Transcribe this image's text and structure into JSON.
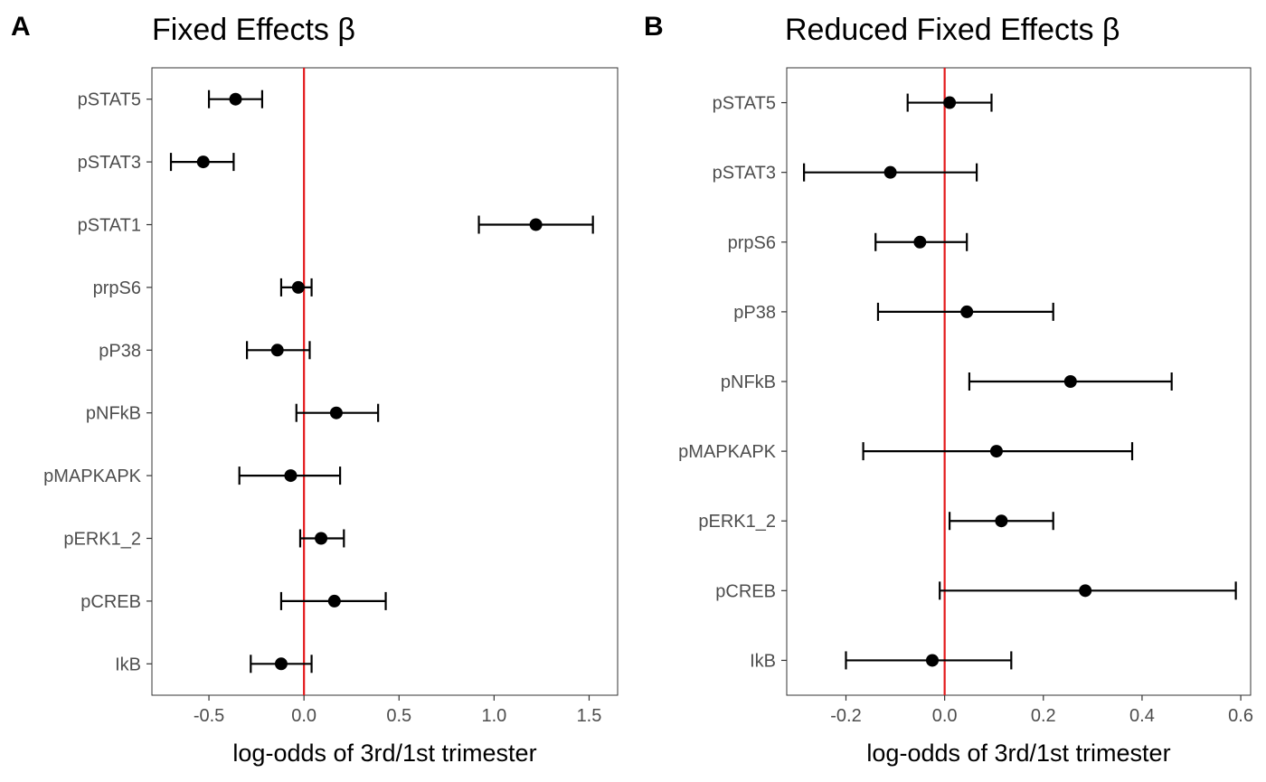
{
  "chart_data": [
    {
      "type": "scatter",
      "panel_label": "A",
      "title": "Fixed Effects β",
      "xlabel": "log-odds of 3rd/1st trimester",
      "ylabel": "",
      "xlim": [
        -0.8,
        1.65
      ],
      "xticks": [
        -0.5,
        0.0,
        0.5,
        1.0,
        1.5
      ],
      "xtick_labels": [
        "-0.5",
        "0.0",
        "0.5",
        "1.0",
        "1.5"
      ],
      "reference_line": {
        "x": 0,
        "color": "#e31a1c"
      },
      "grid": false,
      "categories": [
        "pSTAT5",
        "pSTAT3",
        "pSTAT1",
        "prpS6",
        "pP38",
        "pNFkB",
        "pMAPKAPK",
        "pERK1_2",
        "pCREB",
        "IkB"
      ],
      "estimate": [
        -0.36,
        -0.53,
        1.22,
        -0.03,
        -0.14,
        0.17,
        -0.07,
        0.09,
        0.16,
        -0.12
      ],
      "lower": [
        -0.5,
        -0.7,
        0.92,
        -0.12,
        -0.3,
        -0.04,
        -0.34,
        -0.02,
        -0.12,
        -0.28
      ],
      "upper": [
        -0.22,
        -0.37,
        1.52,
        0.04,
        0.03,
        0.39,
        0.19,
        0.21,
        0.43,
        0.04
      ]
    },
    {
      "type": "scatter",
      "panel_label": "B",
      "title": "Reduced Fixed Effects β",
      "xlabel": "log-odds of 3rd/1st trimester",
      "ylabel": "",
      "xlim": [
        -0.32,
        0.62
      ],
      "xticks": [
        -0.2,
        0.0,
        0.2,
        0.4,
        0.6
      ],
      "xtick_labels": [
        "-0.2",
        "0.0",
        "0.2",
        "0.4",
        "0.6"
      ],
      "reference_line": {
        "x": 0,
        "color": "#e31a1c"
      },
      "grid": false,
      "categories": [
        "pSTAT5",
        "pSTAT3",
        "prpS6",
        "pP38",
        "pNFkB",
        "pMAPKAPK",
        "pERK1_2",
        "pCREB",
        "IkB"
      ],
      "estimate": [
        0.01,
        -0.11,
        -0.05,
        0.045,
        0.255,
        0.105,
        0.115,
        0.285,
        -0.025
      ],
      "lower": [
        -0.075,
        -0.285,
        -0.14,
        -0.135,
        0.05,
        -0.165,
        0.01,
        -0.01,
        -0.2
      ],
      "upper": [
        0.095,
        0.065,
        0.045,
        0.22,
        0.46,
        0.38,
        0.22,
        0.59,
        0.135
      ]
    }
  ]
}
